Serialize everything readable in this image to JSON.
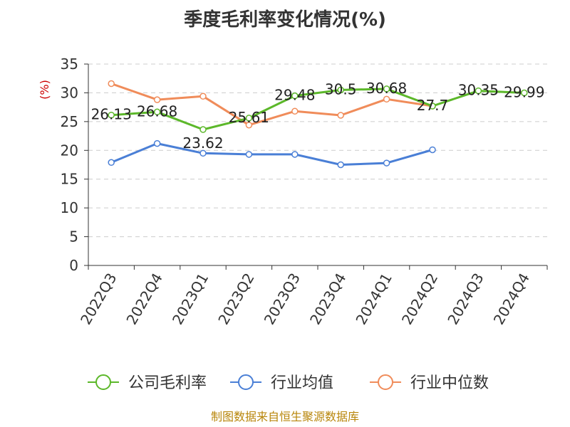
{
  "chart_data": {
    "type": "line",
    "title": "季度毛利率变化情况(%)",
    "ylabel": "(%)",
    "ylim": [
      0,
      35
    ],
    "yticks": [
      0,
      5,
      10,
      15,
      20,
      25,
      30,
      35
    ],
    "grid": true,
    "legend_position": "bottom",
    "categories": [
      "2022Q3",
      "2022Q4",
      "2023Q1",
      "2023Q2",
      "2023Q3",
      "2023Q4",
      "2024Q1",
      "2024Q2",
      "2024Q3",
      "2024Q4"
    ],
    "series": [
      {
        "name": "公司毛利率",
        "color": "#5cb82a",
        "values": [
          26.13,
          26.68,
          23.62,
          25.61,
          29.48,
          30.5,
          30.68,
          27.7,
          30.35,
          29.99
        ],
        "labels": [
          "26.13",
          "26.68",
          "23.62",
          "25.61",
          "29.48",
          "30.5",
          "30.68",
          "27.7",
          "30.35",
          "29.99"
        ]
      },
      {
        "name": "行业均值",
        "color": "#4a7fd6",
        "values": [
          17.9,
          21.2,
          19.5,
          19.3,
          19.3,
          17.5,
          17.8,
          20.1,
          null,
          null
        ]
      },
      {
        "name": "行业中位数",
        "color": "#f08c5a",
        "values": [
          31.6,
          28.8,
          29.4,
          24.4,
          26.8,
          26.1,
          28.9,
          27.7,
          null,
          null
        ]
      }
    ]
  },
  "source": "制图数据来自恒生聚源数据库"
}
